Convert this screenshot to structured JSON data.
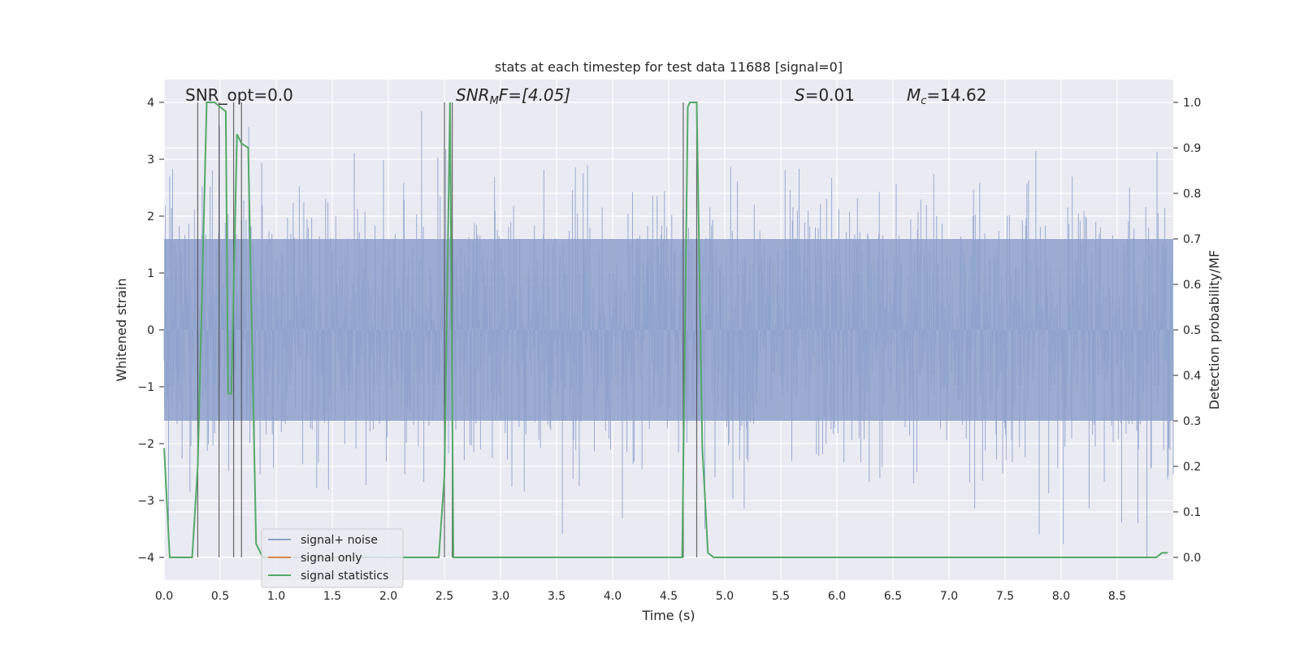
{
  "chart_data": {
    "type": "line",
    "title": "stats at each timestep for test data 11688 [signal=0]",
    "xlabel": "Time (s)",
    "ylabel_left": "Whitened strain",
    "ylabel_right": "Detection probability/MF",
    "xlim": [
      0.0,
      9.0
    ],
    "ylim_left": [
      -4.4,
      4.4
    ],
    "ylim_right": [
      -0.05,
      1.05
    ],
    "x_ticks": [
      "0.0",
      "0.5",
      "1.0",
      "1.5",
      "2.0",
      "2.5",
      "3.0",
      "3.5",
      "4.0",
      "4.5",
      "5.0",
      "5.5",
      "6.0",
      "6.5",
      "7.0",
      "7.5",
      "8.0",
      "8.5"
    ],
    "y_ticks_left": [
      "4",
      "3",
      "2",
      "1",
      "0",
      "−1",
      "−2",
      "−3",
      "−4"
    ],
    "y_ticks_right": [
      "1.0",
      "0.9",
      "0.8",
      "0.7",
      "0.6",
      "0.5",
      "0.4",
      "0.3",
      "0.2",
      "0.1",
      "0.0"
    ],
    "annotations": {
      "snr_opt": "SNR_opt=0.0",
      "snr_mf_sym": "SNR",
      "snr_mf_sub": "M",
      "snr_mf_rest": "F=[4.05]",
      "s_sym": "S",
      "s_rest": "=0.01",
      "mc_sym": "M",
      "mc_sub": "c",
      "mc_rest": "=14.62"
    },
    "legend": [
      {
        "label": "signal+ noise",
        "color": "#8da0cb"
      },
      {
        "label": "signal only",
        "color": "#dd8452"
      },
      {
        "label": "signal statistics",
        "color": "#55a868"
      }
    ],
    "trigger_lines_x": [
      0.3,
      0.49,
      0.62,
      0.69,
      2.5,
      2.57,
      4.63,
      4.75
    ],
    "series": [
      {
        "name": "signal statistics",
        "axis": "right",
        "color": "#55a868",
        "x": [
          0.0,
          0.05,
          0.1,
          0.2,
          0.25,
          0.3,
          0.38,
          0.45,
          0.5,
          0.55,
          0.57,
          0.6,
          0.65,
          0.69,
          0.75,
          0.82,
          0.88,
          2.4,
          2.45,
          2.5,
          2.55,
          2.58,
          2.62,
          2.7,
          4.0,
          4.5,
          4.62,
          4.67,
          4.69,
          4.75,
          4.8,
          4.85,
          4.9,
          5.5,
          7.0,
          7.5,
          8.0,
          8.5,
          8.8,
          8.85,
          8.9,
          8.95
        ],
        "y": [
          0.24,
          0.0,
          0.0,
          0.0,
          0.0,
          0.2,
          1.0,
          1.0,
          0.99,
          0.98,
          0.36,
          0.36,
          0.93,
          0.91,
          0.9,
          0.03,
          0.0,
          0.0,
          0.0,
          0.18,
          1.0,
          0.0,
          0.0,
          0.0,
          0.0,
          0.0,
          0.0,
          0.99,
          1.0,
          1.0,
          0.24,
          0.01,
          0.0,
          0.0,
          0.0,
          0.0,
          0.0,
          0.0,
          0.0,
          0.0,
          0.01,
          0.01
        ]
      },
      {
        "name": "signal+ noise",
        "axis": "left",
        "color": "#8da0cb",
        "noise_envelope": {
          "core_sigma": 1.2,
          "max_abs": 4.0,
          "samples": 1800
        }
      },
      {
        "name": "signal only",
        "axis": "left",
        "color": "#dd8452",
        "x": [
          0.0,
          9.0
        ],
        "y": [
          0.0,
          0.0
        ]
      }
    ]
  }
}
